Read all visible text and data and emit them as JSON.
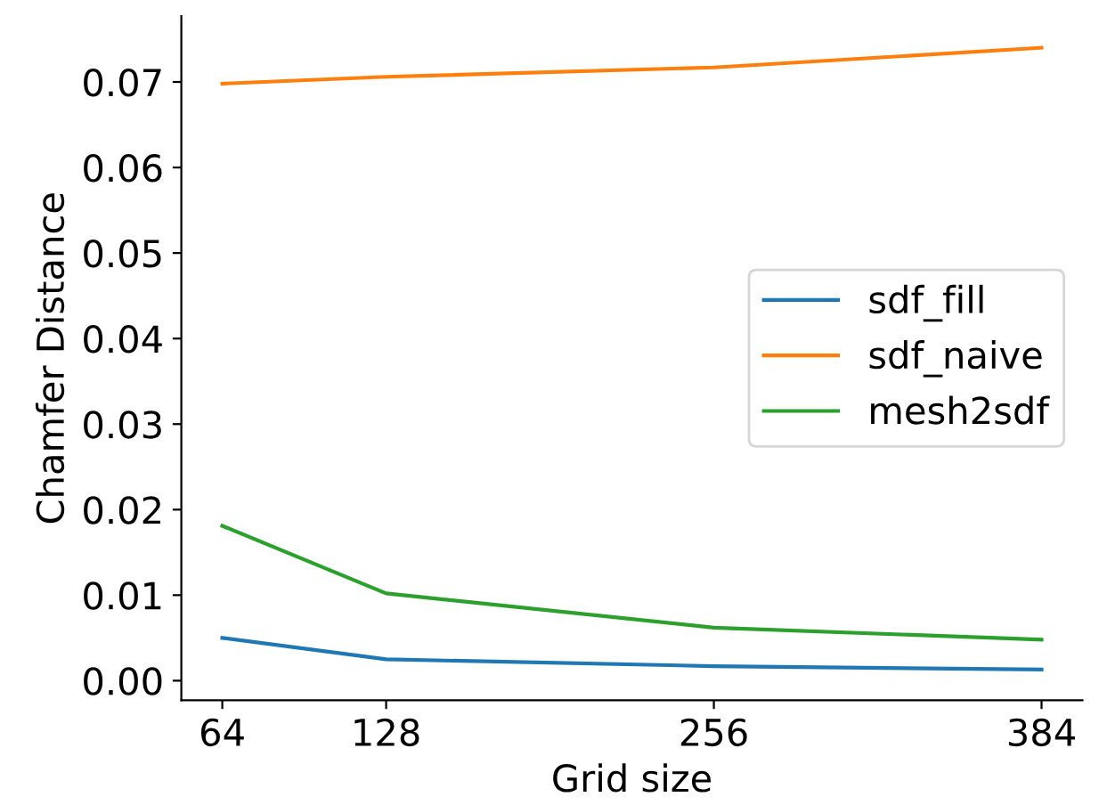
{
  "chart_data": {
    "type": "line",
    "xlabel": "Grid size",
    "ylabel": "Chamfer Distance",
    "x": [
      64,
      128,
      256,
      384
    ],
    "series": [
      {
        "name": "sdf_fill",
        "color": "#1f77b4",
        "values": [
          0.005,
          0.0025,
          0.0017,
          0.0013
        ]
      },
      {
        "name": "sdf_naive",
        "color": "#ff7f0e",
        "values": [
          0.0698,
          0.0706,
          0.0717,
          0.074
        ]
      },
      {
        "name": "mesh2sdf",
        "color": "#2ca02c",
        "values": [
          0.0181,
          0.0102,
          0.0062,
          0.0048
        ]
      }
    ],
    "xlim": [
      48,
      400
    ],
    "xticks": [
      64,
      128,
      256,
      384
    ],
    "ylim": [
      -0.0023,
      0.0777
    ],
    "yticks": [
      {
        "value": 0,
        "label": "0.00"
      },
      {
        "value": 0.01,
        "label": "0.01"
      },
      {
        "value": 0.02,
        "label": "0.02"
      },
      {
        "value": 0.03,
        "label": "0.03"
      },
      {
        "value": 0.04,
        "label": "0.04"
      },
      {
        "value": 0.05,
        "label": "0.05"
      },
      {
        "value": 0.06,
        "label": "0.06"
      },
      {
        "value": 0.07,
        "label": "0.07"
      }
    ],
    "grid": false,
    "legend": "right",
    "marker": "none",
    "line_style": "solid"
  }
}
